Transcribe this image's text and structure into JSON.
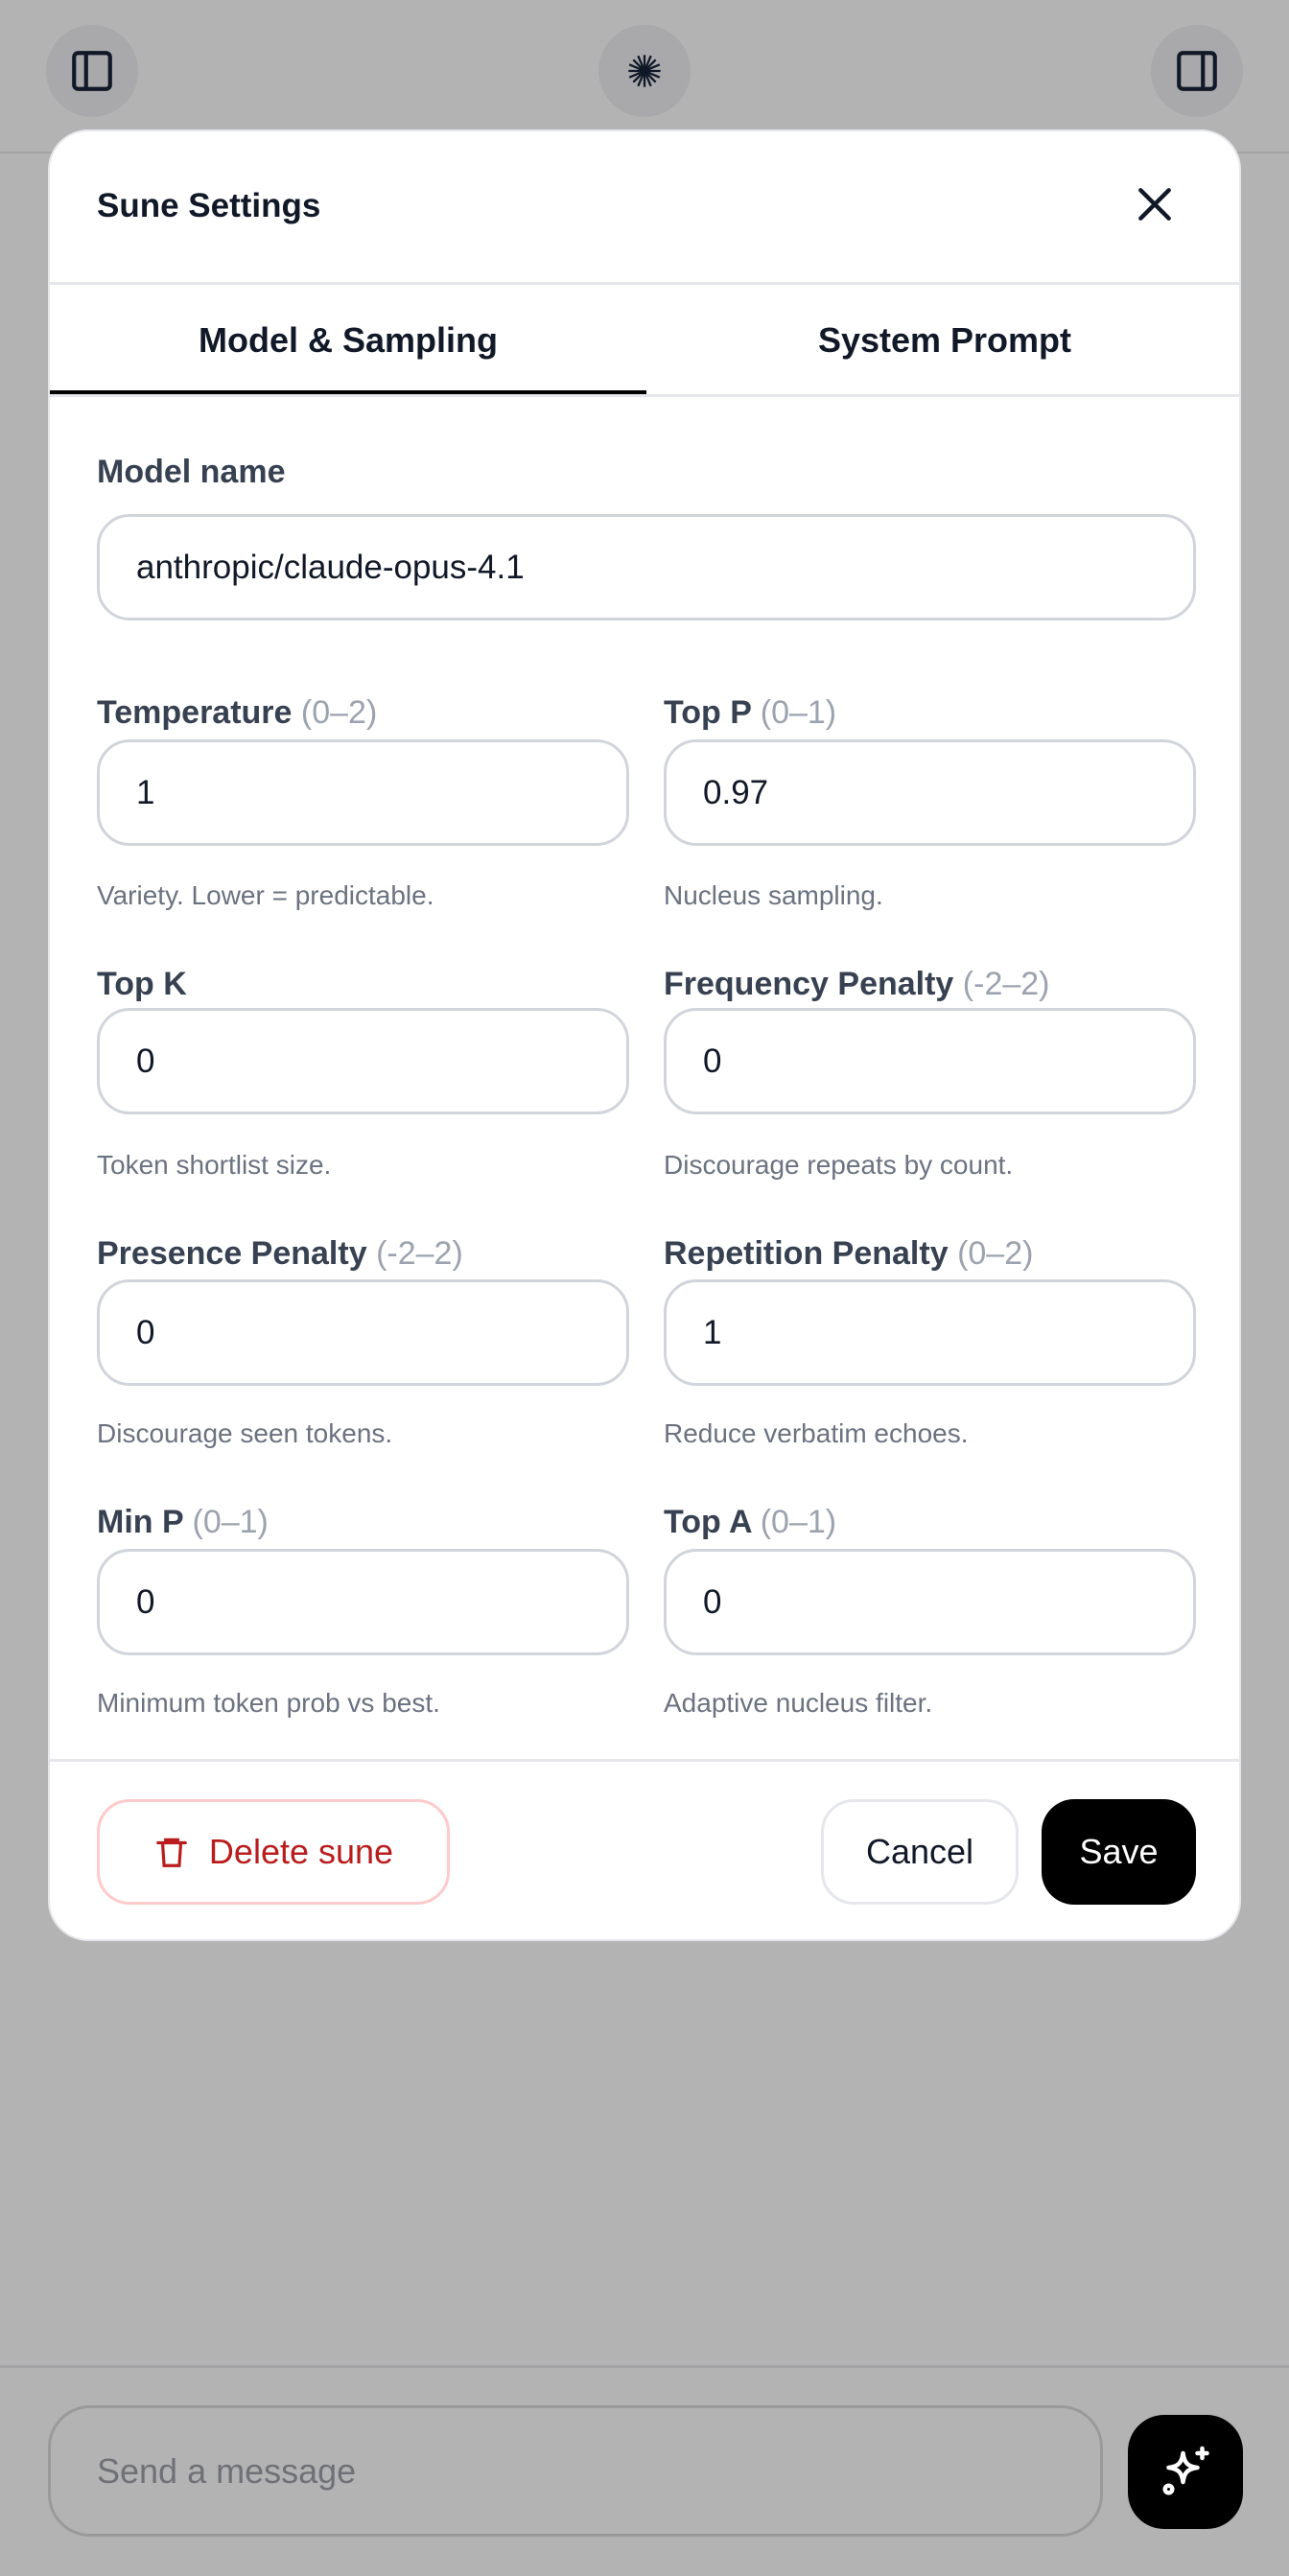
{
  "header": {
    "left_icon": "sidebar-left-icon",
    "center_icon": "starburst-logo-icon",
    "right_icon": "sidebar-right-icon"
  },
  "modal": {
    "title": "Sune Settings",
    "close_icon": "close-icon",
    "tabs": [
      {
        "label": "Model & Sampling",
        "active": true
      },
      {
        "label": "System Prompt",
        "active": false
      }
    ],
    "model_name": {
      "label": "Model name",
      "value": "anthropic/claude-opus-4.1"
    },
    "fields": [
      {
        "label": "Temperature",
        "range": "(0–2)",
        "value": "1",
        "hint": "Variety. Lower = predictable."
      },
      {
        "label": "Top P",
        "range": "(0–1)",
        "value": "0.97",
        "hint": "Nucleus sampling."
      },
      {
        "label": "Top K",
        "range": "",
        "value": "0",
        "hint": "Token shortlist size."
      },
      {
        "label": "Frequency Penalty",
        "range": "(-2–2)",
        "value": "0",
        "hint": "Discourage repeats by count."
      },
      {
        "label": "Presence Penalty",
        "range": "(-2–2)",
        "value": "0",
        "hint": "Discourage seen tokens."
      },
      {
        "label": "Repetition Penalty",
        "range": "(0–2)",
        "value": "1",
        "hint": "Reduce verbatim echoes."
      },
      {
        "label": "Min P",
        "range": "(0–1)",
        "value": "0",
        "hint": "Minimum token prob vs best."
      },
      {
        "label": "Top A",
        "range": "(0–1)",
        "value": "0",
        "hint": "Adaptive nucleus filter."
      }
    ],
    "footer": {
      "delete_label": "Delete sune",
      "delete_icon": "trash-icon",
      "cancel_label": "Cancel",
      "save_label": "Save"
    }
  },
  "composer": {
    "placeholder": "Send a message",
    "action_icon": "sparkles-icon"
  },
  "colors": {
    "danger": "#b91c1c",
    "primary": "#000000",
    "overlay": "#b3b3b3"
  }
}
